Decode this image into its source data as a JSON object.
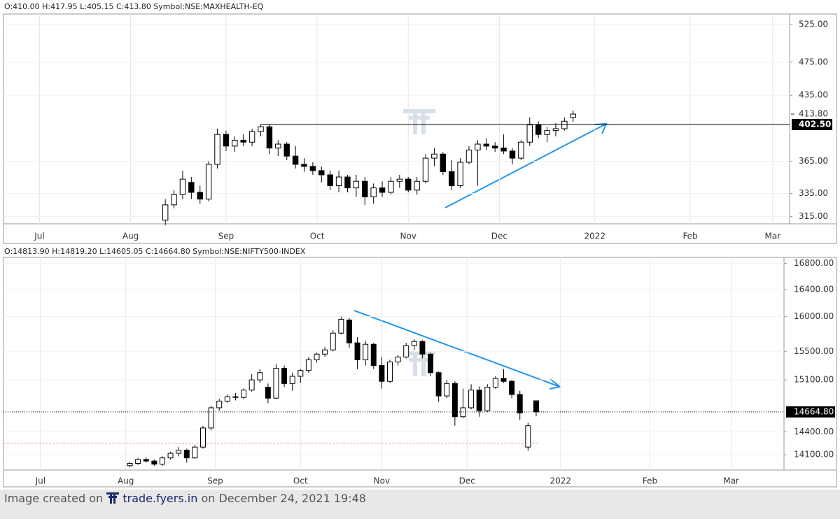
{
  "chart_data": [
    {
      "type": "candlestick",
      "header": "O:410.00 H:417.95 L:405.15 C:413.80 Symbol:NSE:MAXHEALTH-EQ",
      "log_scale": true,
      "grid": true,
      "up_color": "#ffffff",
      "down_color": "#000000",
      "xlim": [
        -8.3,
        172.9
      ],
      "xticks": [
        {
          "value": 0,
          "label": "Jul"
        },
        {
          "value": 21,
          "label": "Aug"
        },
        {
          "value": 43,
          "label": "Sep"
        },
        {
          "value": 64,
          "label": "Oct"
        },
        {
          "value": 85,
          "label": "Nov"
        },
        {
          "value": 106,
          "label": "Dec"
        },
        {
          "value": 128,
          "label": "2022"
        },
        {
          "value": 150,
          "label": "Feb"
        },
        {
          "value": 169,
          "label": "Mar"
        }
      ],
      "ylim": [
        309,
        540
      ],
      "yticks": [
        {
          "value": 315,
          "label": "315.00"
        },
        {
          "value": 335,
          "label": "335.00"
        },
        {
          "value": 365,
          "label": "365.00"
        },
        {
          "value": 435,
          "label": "435.00"
        },
        {
          "value": 475,
          "label": "475.00"
        },
        {
          "value": 525,
          "label": "525.00"
        }
      ],
      "last_price": {
        "value": 413.8,
        "label": "413.80"
      },
      "level_line": {
        "value": 402.5,
        "label": "402.50"
      },
      "x": [
        29,
        31,
        33,
        35,
        37,
        39,
        41,
        43,
        45,
        47,
        49,
        51,
        53,
        55,
        57,
        59,
        61,
        63,
        65,
        67,
        69,
        71,
        73,
        75,
        77,
        79,
        81,
        83,
        85,
        87,
        89,
        91,
        93,
        95,
        97,
        99,
        101,
        103,
        105,
        107,
        109,
        111,
        113,
        115,
        117,
        119,
        121,
        123
      ],
      "ohlc": [
        [
          312,
          330,
          308,
          325
        ],
        [
          325,
          338,
          322,
          334
        ],
        [
          334,
          356,
          330,
          348
        ],
        [
          345,
          350,
          330,
          336
        ],
        [
          336,
          342,
          326,
          330
        ],
        [
          330,
          365,
          328,
          362
        ],
        [
          362,
          398,
          358,
          392
        ],
        [
          392,
          396,
          375,
          380
        ],
        [
          380,
          390,
          374,
          386
        ],
        [
          386,
          392,
          380,
          384
        ],
        [
          384,
          398,
          380,
          395
        ],
        [
          395,
          402,
          390,
          400
        ],
        [
          400,
          403,
          372,
          378
        ],
        [
          378,
          386,
          370,
          382
        ],
        [
          382,
          384,
          366,
          370
        ],
        [
          370,
          380,
          358,
          362
        ],
        [
          362,
          368,
          355,
          360
        ],
        [
          360,
          364,
          352,
          356
        ],
        [
          356,
          360,
          345,
          352
        ],
        [
          352,
          356,
          338,
          342
        ],
        [
          342,
          356,
          336,
          350
        ],
        [
          350,
          352,
          336,
          340
        ],
        [
          340,
          352,
          332,
          346
        ],
        [
          346,
          350,
          325,
          332
        ],
        [
          332,
          344,
          326,
          340
        ],
        [
          340,
          346,
          332,
          336
        ],
        [
          336,
          350,
          334,
          346
        ],
        [
          346,
          352,
          340,
          348
        ],
        [
          348,
          350,
          336,
          338
        ],
        [
          338,
          350,
          334,
          346
        ],
        [
          346,
          372,
          344,
          368
        ],
        [
          368,
          378,
          360,
          372
        ],
        [
          372,
          374,
          352,
          355
        ],
        [
          355,
          366,
          338,
          342
        ],
        [
          342,
          368,
          340,
          364
        ],
        [
          364,
          380,
          362,
          376
        ],
        [
          376,
          386,
          342,
          382
        ],
        [
          382,
          388,
          376,
          380
        ],
        [
          380,
          384,
          374,
          378
        ],
        [
          378,
          392,
          372,
          375
        ],
        [
          375,
          378,
          362,
          368
        ],
        [
          368,
          386,
          366,
          384
        ],
        [
          384,
          410,
          380,
          402
        ],
        [
          402,
          406,
          388,
          392
        ],
        [
          392,
          400,
          384,
          396
        ],
        [
          396,
          404,
          390,
          398
        ],
        [
          398,
          410,
          396,
          406
        ],
        [
          410,
          417.95,
          405.15,
          413.8
        ]
      ]
    },
    {
      "type": "candlestick",
      "header": "O:14813.90 H:14819.20 L:14605.05 C:14664.80 Symbol:NSE:NIFTY500-INDEX",
      "log_scale": true,
      "grid": true,
      "up_color": "#ffffff",
      "down_color": "#000000",
      "xlim": [
        -9.1,
        183
      ],
      "xticks": [
        {
          "value": 0,
          "label": "Jul"
        },
        {
          "value": 21,
          "label": "Aug"
        },
        {
          "value": 43,
          "label": "Sep"
        },
        {
          "value": 64,
          "label": "Oct"
        },
        {
          "value": 84,
          "label": "Nov"
        },
        {
          "value": 105,
          "label": "Dec"
        },
        {
          "value": 128,
          "label": "2022"
        },
        {
          "value": 150,
          "label": "Feb"
        },
        {
          "value": 170,
          "label": "Mar"
        }
      ],
      "ylim": [
        13905,
        16890
      ],
      "yticks": [
        {
          "value": 14100,
          "label": "14100.00"
        },
        {
          "value": 14400,
          "label": "14400.00"
        },
        {
          "value": 15100,
          "label": "15100.00"
        },
        {
          "value": 15500,
          "label": "15500.00"
        },
        {
          "value": 16000,
          "label": "16000.00"
        },
        {
          "value": 16400,
          "label": "16400.00"
        },
        {
          "value": 16800,
          "label": "16800.00"
        }
      ],
      "last_price": {
        "value": 14664.8,
        "label": "14664.80"
      },
      "reference_line": 14250,
      "x": [
        22,
        24,
        26,
        28,
        30,
        32,
        34,
        36,
        38,
        40,
        42,
        44,
        46,
        48,
        50,
        52,
        54,
        56,
        58,
        60,
        62,
        64,
        66,
        68,
        70,
        72,
        74,
        76,
        78,
        80,
        82,
        84,
        86,
        88,
        90,
        92,
        94,
        96,
        98,
        100,
        102,
        104,
        106,
        108,
        110,
        112,
        114,
        116,
        118,
        120,
        122
      ],
      "ohlc": [
        [
          13960,
          14010,
          13940,
          13990
        ],
        [
          13990,
          14060,
          13970,
          14040
        ],
        [
          14040,
          14070,
          14000,
          14020
        ],
        [
          14020,
          14040,
          13960,
          13980
        ],
        [
          13980,
          14080,
          13960,
          14060
        ],
        [
          14060,
          14140,
          14040,
          14120
        ],
        [
          14120,
          14200,
          14080,
          14160
        ],
        [
          14160,
          14180,
          14000,
          14060
        ],
        [
          14060,
          14230,
          14050,
          14200
        ],
        [
          14200,
          14480,
          14180,
          14450
        ],
        [
          14450,
          14750,
          14420,
          14720
        ],
        [
          14720,
          14840,
          14680,
          14810
        ],
        [
          14810,
          14900,
          14790,
          14870
        ],
        [
          14870,
          14920,
          14820,
          14860
        ],
        [
          14860,
          14980,
          14840,
          14960
        ],
        [
          14960,
          15180,
          14940,
          15100
        ],
        [
          15100,
          15250,
          15060,
          15200
        ],
        [
          15000,
          15050,
          14780,
          14850
        ],
        [
          14850,
          15320,
          14840,
          15260
        ],
        [
          15260,
          15300,
          15000,
          15050
        ],
        [
          15050,
          15200,
          14950,
          15150
        ],
        [
          15150,
          15250,
          15060,
          15230
        ],
        [
          15230,
          15420,
          15200,
          15380
        ],
        [
          15380,
          15480,
          15340,
          15460
        ],
        [
          15460,
          15560,
          15420,
          15520
        ],
        [
          15520,
          15800,
          15500,
          15760
        ],
        [
          15760,
          16000,
          15740,
          15960
        ],
        [
          15950,
          15980,
          15550,
          15620
        ],
        [
          15620,
          15700,
          15250,
          15380
        ],
        [
          15380,
          15650,
          15300,
          15600
        ],
        [
          15600,
          15620,
          15250,
          15300
        ],
        [
          15300,
          15420,
          14980,
          15080
        ],
        [
          15080,
          15380,
          15060,
          15350
        ],
        [
          15350,
          15450,
          15300,
          15420
        ],
        [
          15420,
          15620,
          15400,
          15580
        ],
        [
          15580,
          15670,
          15520,
          15640
        ],
        [
          15640,
          15660,
          15400,
          15460
        ],
        [
          15460,
          15480,
          15150,
          15200
        ],
        [
          15200,
          15220,
          14800,
          14880
        ],
        [
          14880,
          15100,
          14850,
          15050
        ],
        [
          15050,
          15080,
          14480,
          14600
        ],
        [
          14600,
          14980,
          14580,
          14720
        ],
        [
          14720,
          15040,
          14700,
          14960
        ],
        [
          14960,
          15010,
          14600,
          14680
        ],
        [
          14680,
          15040,
          14660,
          15000
        ],
        [
          15000,
          15150,
          14980,
          15120
        ],
        [
          15120,
          15250,
          15060,
          15080
        ],
        [
          15080,
          15100,
          14850,
          14900
        ],
        [
          14900,
          14950,
          14560,
          14650
        ],
        [
          14200,
          14520,
          14150,
          14480
        ],
        [
          14813.9,
          14819.2,
          14605.05,
          14664.8
        ]
      ]
    }
  ],
  "footer": {
    "prefix": "Image created on",
    "site": "trade.fyers.in",
    "suffix": "on December 24, 2021 19:48"
  }
}
